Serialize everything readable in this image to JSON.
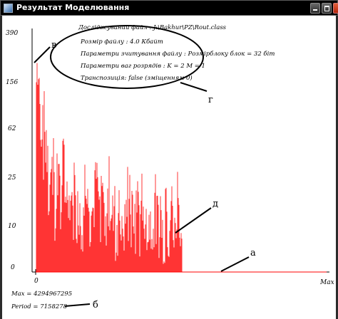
{
  "window": {
    "title": "Результат Моделювання",
    "icon": "app-icon"
  },
  "colors": {
    "series": "#ff0000",
    "axis": "#000000",
    "titlebar": "#000000",
    "background": "#ffffff"
  },
  "info": {
    "file": "Досліджуваний файл : J:\\Bakhur\\PZ\\Rout.class",
    "size": "Розмір файлу : 4.0 Кбайт",
    "read_params": "Параметри зчитування файлу :   Розмірблоку блок = 32 біт",
    "weight_params": "Параметри ваг розрядів : K = 2  M = 1",
    "transposition": "Транспозиція: false (зміщенням 0)"
  },
  "stats": {
    "max": "Max    = 4294967295",
    "period": "Period = 7158278"
  },
  "annotations": {
    "a": "а",
    "b": "б",
    "v": "в",
    "g": "г",
    "d": "д"
  },
  "chart_data": {
    "type": "bar",
    "y_scale": "log",
    "y_ticks": [
      "390",
      "156",
      "62",
      "25",
      "10",
      "0"
    ],
    "x_ticks": [
      "0",
      "Max"
    ],
    "series": [
      {
        "color": "#ff0000",
        "peak_values": [
          180,
          140,
          95,
          60,
          22,
          40,
          14,
          25,
          18,
          30,
          12,
          9,
          20,
          15,
          11,
          8,
          25,
          10,
          13,
          7,
          18,
          9,
          12,
          6,
          21,
          8,
          10,
          5,
          14,
          11,
          7,
          19,
          9,
          6,
          13,
          8,
          24,
          6,
          10,
          7,
          15,
          9,
          11,
          5,
          16,
          8,
          12,
          6,
          20,
          10
        ]
      }
    ]
  }
}
